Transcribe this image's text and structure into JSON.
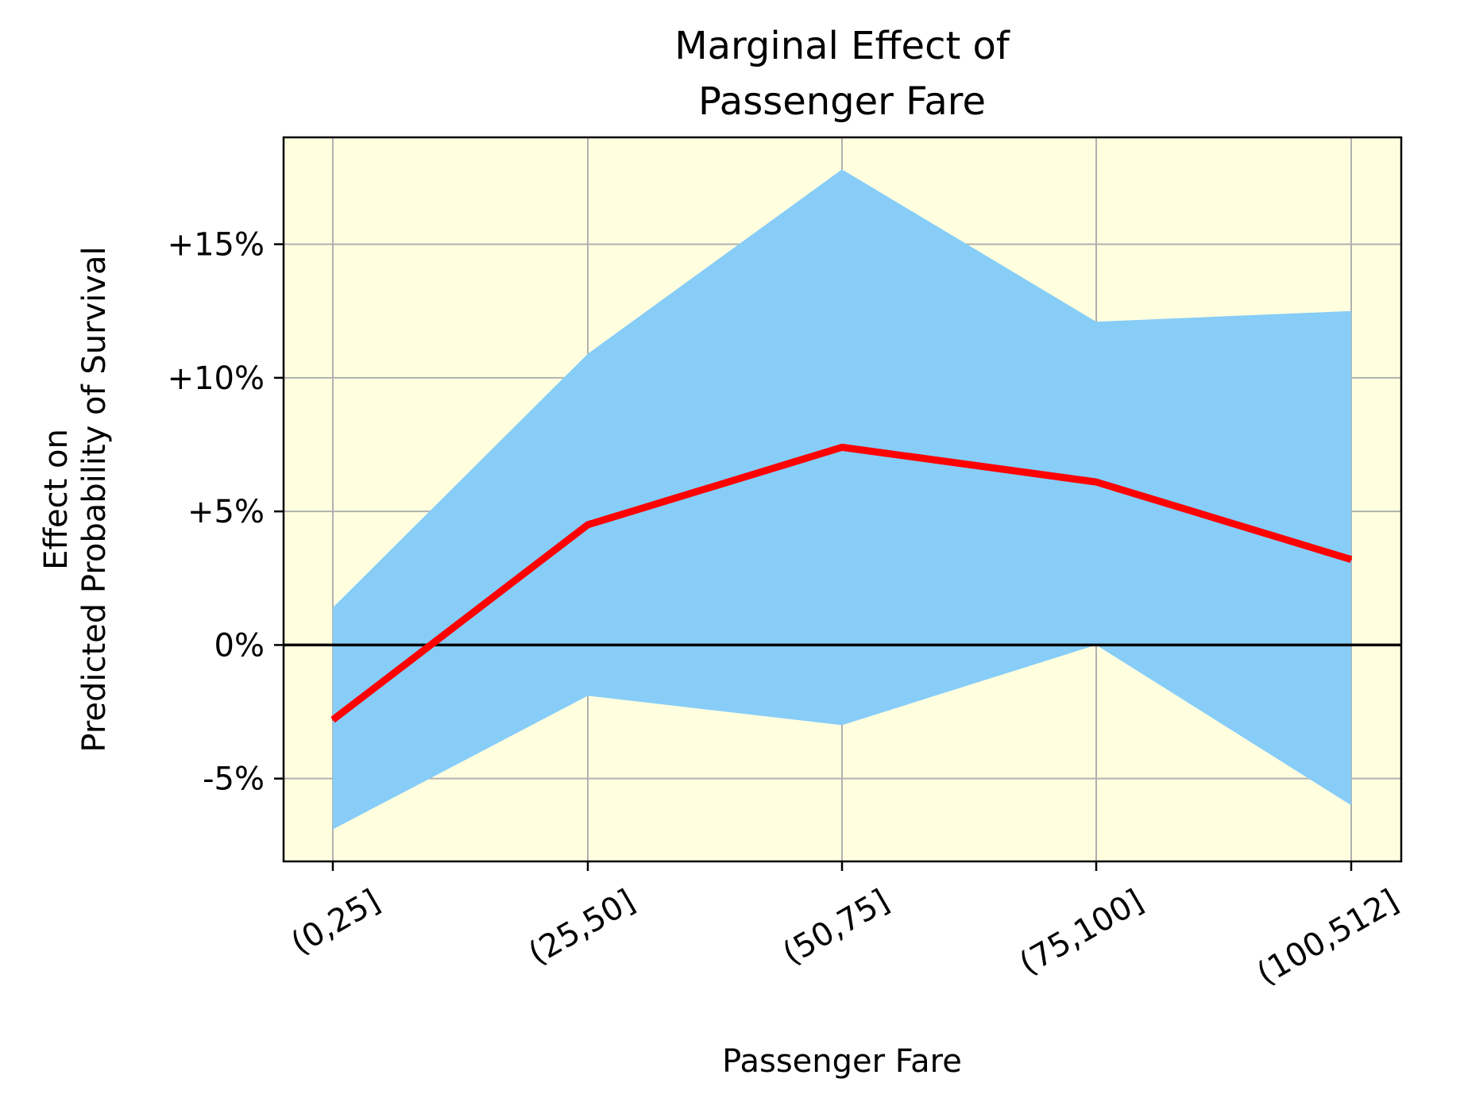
{
  "chart_data": {
    "type": "line",
    "title_lines": [
      "Marginal Effect of",
      "Passenger Fare"
    ],
    "xlabel": "Passenger Fare",
    "ylabel_lines": [
      "Effect on",
      "Predicted Probability of Survival"
    ],
    "categories": [
      "(0,25]",
      "(25,50]",
      "(50,75]",
      "(75,100]",
      "(100,512]"
    ],
    "series": [
      {
        "values": [
          -2.8,
          4.5,
          7.4,
          6.1,
          3.2
        ],
        "color": "#ff0000"
      }
    ],
    "confidence_band": {
      "lower": [
        -6.9,
        -1.9,
        -3.0,
        0.0,
        -6.0
      ],
      "upper": [
        1.4,
        10.9,
        17.8,
        12.1,
        12.5
      ],
      "color": "#87cdf8"
    },
    "y_ticks": [
      -5,
      0,
      5,
      10,
      15
    ],
    "y_tick_labels": [
      "-5%",
      "0%",
      "+5%",
      "+10%",
      "+15%"
    ],
    "ylim": [
      -8.1,
      19.0
    ],
    "reference_line_y": 0,
    "grid": true,
    "plot_background": "#ffffe0",
    "grid_color": "#b0b0b0"
  }
}
